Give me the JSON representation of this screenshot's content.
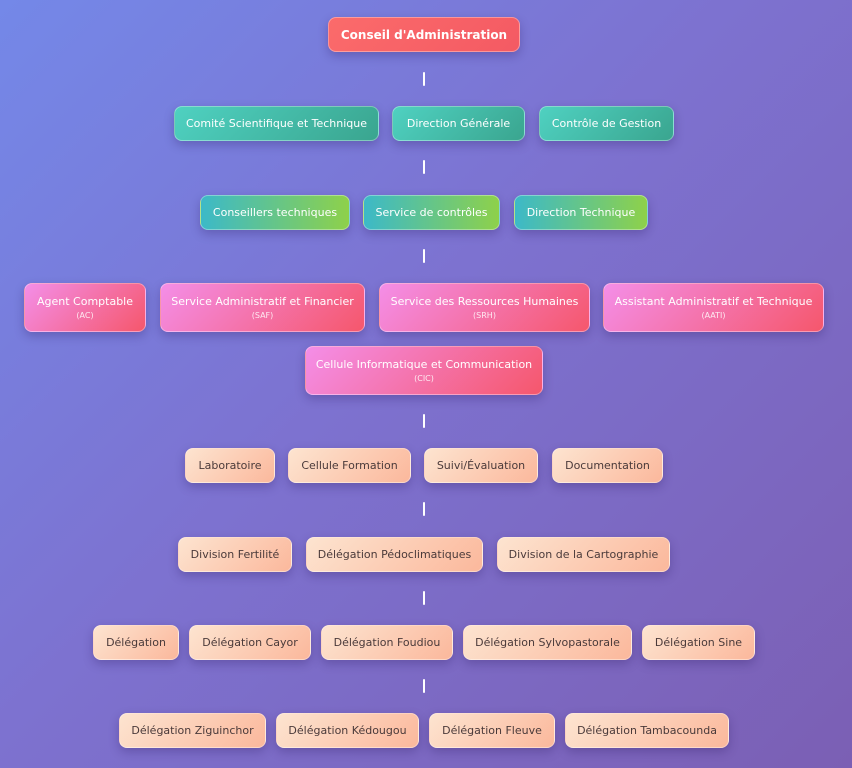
{
  "top": "Conseil d'Administration",
  "level2": [
    "Comité Scientifique et Technique",
    "Direction Générale",
    "Contrôle de Gestion"
  ],
  "level3": [
    "Conseillers techniques",
    "Service de contrôles",
    "Direction Technique"
  ],
  "level4": [
    {
      "label": "Agent Comptable",
      "abbr": "(AC)"
    },
    {
      "label": "Service Administratif et Financier",
      "abbr": "(SAF)"
    },
    {
      "label": "Service des Ressources Humaines",
      "abbr": "(SRH)"
    },
    {
      "label": "Assistant Administratif et Technique",
      "abbr": "(AATI)"
    },
    {
      "label": "Cellule Informatique et Communication",
      "abbr": "(CIC)"
    }
  ],
  "level5": [
    "Laboratoire",
    "Cellule Formation",
    "Suivi/Évaluation",
    "Documentation"
  ],
  "level6": [
    "Division Fertilité",
    "Délégation Pédoclimatiques",
    "Division de la Cartographie"
  ],
  "level7": [
    "Délégation",
    "Délégation Cayor",
    "Délégation Foudiou",
    "Délégation Sylvopastorale",
    "Délégation Sine"
  ],
  "level8": [
    "Délégation Ziguinchor",
    "Délégation Kédougou",
    "Délégation Fleuve",
    "Délégation Tambacounda"
  ],
  "colors": {
    "top": "#f45a63",
    "teal": "#3aa58f",
    "green": "#8ed14a",
    "pink": "#f48ee8",
    "peach": "#fbb89c"
  }
}
